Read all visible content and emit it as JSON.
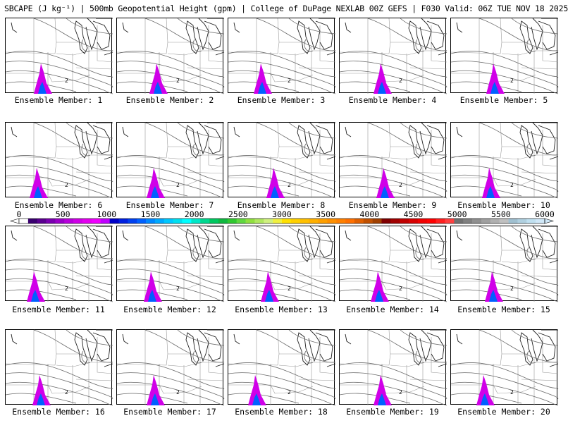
{
  "header": {
    "title": "SBCAPE (J kg⁻¹) | 500mb Geopotential Height (gpm) | College of DuPage NEXLAB 00Z GEFS | F030 Valid: 06Z TUE NOV 18 2025"
  },
  "panels": [
    {
      "label": "Ensemble Member: 1",
      "contour_label": "2"
    },
    {
      "label": "Ensemble Member: 2",
      "contour_label": "2"
    },
    {
      "label": "Ensemble Member: 3",
      "contour_label": "2"
    },
    {
      "label": "Ensemble Member: 4",
      "contour_label": "2"
    },
    {
      "label": "Ensemble Member: 5",
      "contour_label": "2"
    },
    {
      "label": "Ensemble Member: 6",
      "contour_label": "2"
    },
    {
      "label": "Ensemble Member: 7",
      "contour_label": "2"
    },
    {
      "label": "Ensemble Member: 8",
      "contour_label": "2"
    },
    {
      "label": "Ensemble Member: 9",
      "contour_label": "2"
    },
    {
      "label": "Ensemble Member: 10",
      "contour_label": "2"
    },
    {
      "label": "Ensemble Member: 11",
      "contour_label": "2"
    },
    {
      "label": "Ensemble Member: 12",
      "contour_label": "2"
    },
    {
      "label": "Ensemble Member: 13",
      "contour_label": "2"
    },
    {
      "label": "Ensemble Member: 14",
      "contour_label": "2"
    },
    {
      "label": "Ensemble Member: 15",
      "contour_label": "2"
    },
    {
      "label": "Ensemble Member: 16",
      "contour_label": "2"
    },
    {
      "label": "Ensemble Member: 17",
      "contour_label": "2"
    },
    {
      "label": "Ensemble Member: 18",
      "contour_label": "2"
    },
    {
      "label": "Ensemble Member: 19",
      "contour_label": "2"
    },
    {
      "label": "Ensemble Member: 20",
      "contour_label": "2"
    }
  ],
  "colorbar": {
    "tick_labels": [
      "0",
      "500",
      "1000",
      "1500",
      "2000",
      "2500",
      "3000",
      "3500",
      "4000",
      "4500",
      "5000",
      "5500",
      "6000"
    ],
    "colors": [
      "#ffffff",
      "#3a0070",
      "#5a0090",
      "#7a00b0",
      "#9a00c8",
      "#b800dc",
      "#d000e8",
      "#e400f0",
      "#f000ff",
      "#c000ff",
      "#0000c8",
      "#0020e0",
      "#0040f0",
      "#0060ff",
      "#0088ff",
      "#00aaff",
      "#00c8ff",
      "#00e0f0",
      "#00ffff",
      "#00e8c8",
      "#00d890",
      "#00c860",
      "#10b840",
      "#30c830",
      "#60d840",
      "#90e040",
      "#b0e860",
      "#d0f080",
      "#f0f040",
      "#ffe000",
      "#ffd000",
      "#ffc000",
      "#ffb000",
      "#ffa000",
      "#ff9000",
      "#ff8000",
      "#ff7000",
      "#e06000",
      "#c05000",
      "#a04000",
      "#800000",
      "#a00000",
      "#c00000",
      "#d80000",
      "#f00000",
      "#ff0000",
      "#ff2020",
      "#ff4040",
      "#707070",
      "#808080",
      "#909090",
      "#a0a0a0",
      "#b0b0b0",
      "#c0c0c0",
      "#a0c0d0",
      "#b0d0e0",
      "#c0e0f0",
      "#d0e8f8"
    ]
  }
}
